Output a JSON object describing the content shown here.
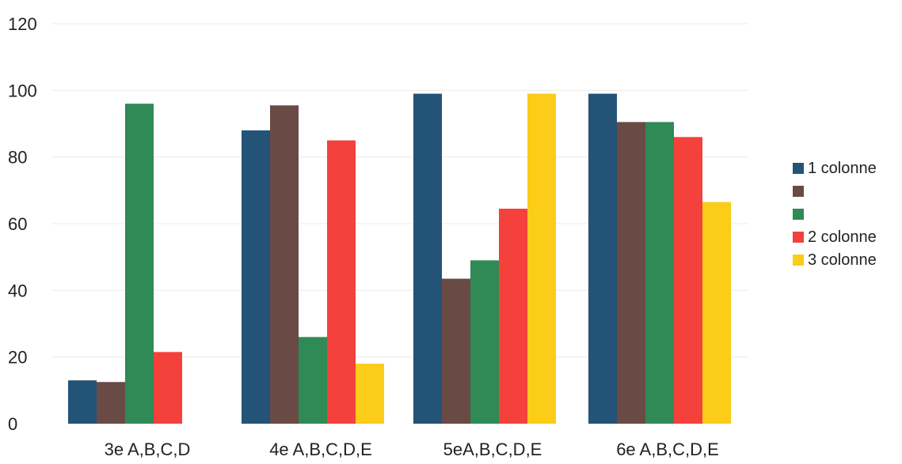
{
  "chart_data": {
    "type": "bar",
    "title": "",
    "xlabel": "",
    "ylabel": "",
    "ylim": [
      0,
      120
    ],
    "yticks": [
      0,
      20,
      40,
      60,
      80,
      100,
      120
    ],
    "grid": true,
    "legend_position": "right",
    "categories": [
      "3e A,B,C,D",
      "4e A,B,C,D,E",
      "5eA,B,C,D,E",
      "6e A,B,C,D,E"
    ],
    "series": [
      {
        "name": "1 colonne",
        "color": "#245378",
        "values": [
          13,
          88,
          99,
          99
        ]
      },
      {
        "name": "",
        "color": "#6a4a45",
        "values": [
          12.5,
          95.5,
          43.5,
          90.5
        ]
      },
      {
        "name": "",
        "color": "#2f8a55",
        "values": [
          96,
          26,
          49,
          90.5
        ]
      },
      {
        "name": "2 colonne",
        "color": "#f4413c",
        "values": [
          21.5,
          85,
          64.5,
          86
        ]
      },
      {
        "name": "3 colonne",
        "color": "#fbcc18",
        "values": [
          null,
          18,
          99,
          66.5
        ]
      }
    ]
  }
}
